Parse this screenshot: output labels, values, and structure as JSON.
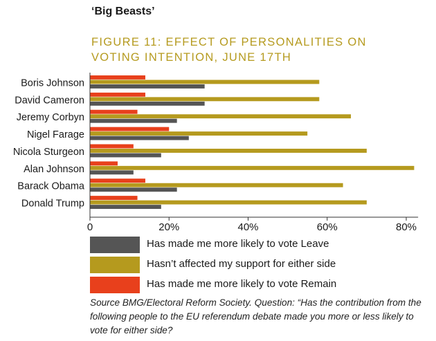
{
  "header": {
    "section_title": "‘Big Beasts’",
    "figure_title": "FIGURE 11: EFFECT OF PERSONALITIES ON VOTING INTENTION, JUNE 17TH"
  },
  "chart_data": {
    "type": "bar",
    "orientation": "horizontal",
    "categories": [
      "Boris Johnson",
      "David Cameron",
      "Jeremy Corbyn",
      "Nigel Farage",
      "Nicola Sturgeon",
      "Alan Johnson",
      "Barack Obama",
      "Donald Trump"
    ],
    "series": [
      {
        "name": "Has made me more likely to vote Remain",
        "color": "#e8401c",
        "values": [
          14,
          14,
          12,
          20,
          11,
          7,
          14,
          12
        ]
      },
      {
        "name": "Hasn’t affected my support for either side",
        "color": "#b59a1e",
        "values": [
          58,
          58,
          66,
          55,
          70,
          82,
          64,
          70
        ]
      },
      {
        "name": "Has made me more likely to vote Leave",
        "color": "#555555",
        "values": [
          29,
          29,
          22,
          25,
          18,
          11,
          22,
          18
        ]
      }
    ],
    "x_ticks": [
      "0",
      "20%",
      "40%",
      "60%",
      "80%"
    ],
    "x_tick_values": [
      0,
      20,
      40,
      60,
      80
    ],
    "xlim": [
      0,
      83
    ],
    "grid": false,
    "legend_placement": "bottom"
  },
  "legend": [
    {
      "label": "Has made me more likely to vote Leave",
      "color": "#555555"
    },
    {
      "label": "Hasn’t affected my support for either side",
      "color": "#b59a1e"
    },
    {
      "label": "Has made me more likely to vote Remain",
      "color": "#e8401c"
    }
  ],
  "source_note": "Source BMG/Electoral Reform Society. Question: “Has the contribution from the following people to the EU referendum debate made you more or less likely to vote for either side?"
}
